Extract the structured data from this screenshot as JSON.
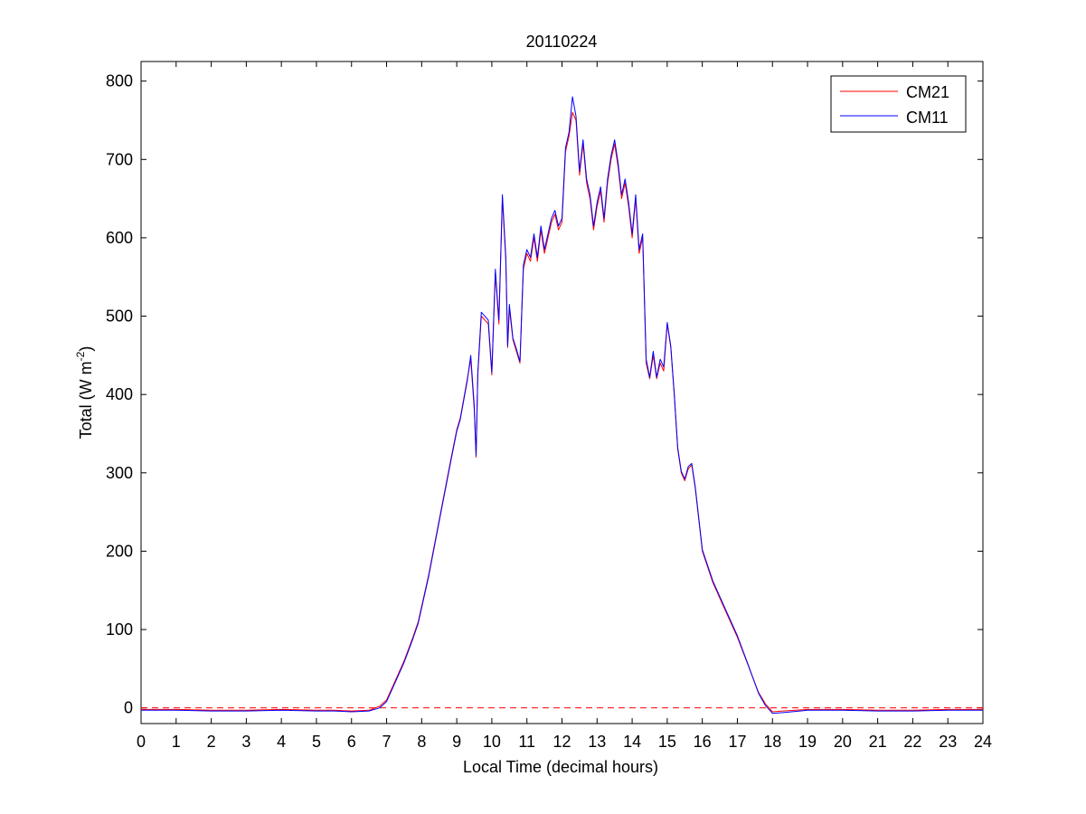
{
  "chart_data": {
    "type": "line",
    "title": "20110224",
    "xlabel": "Local Time (decimal hours)",
    "ylabel": {
      "base": "Total (W m",
      "exponent": "-2",
      "close": ")"
    },
    "xlim": [
      0,
      24
    ],
    "ylim": [
      -20,
      825
    ],
    "xticks": [
      0,
      1,
      2,
      3,
      4,
      5,
      6,
      7,
      8,
      9,
      10,
      11,
      12,
      13,
      14,
      15,
      16,
      17,
      18,
      19,
      20,
      21,
      22,
      23,
      24
    ],
    "yticks": [
      0,
      100,
      200,
      300,
      400,
      500,
      600,
      700,
      800
    ],
    "grid": false,
    "legend_position": "top-right",
    "reference_line": {
      "y": 0,
      "style": "dashed",
      "color": "#ff0000"
    },
    "series": [
      {
        "name": "CM21",
        "color": "#ff0000",
        "x": [
          0,
          1,
          2,
          3,
          4,
          5,
          5.5,
          6,
          6.5,
          6.8,
          7,
          7.2,
          7.5,
          7.75,
          7.9,
          8.2,
          8.5,
          8.8,
          9,
          9.1,
          9.3,
          9.4,
          9.5,
          9.55,
          9.6,
          9.7,
          9.9,
          10,
          10.1,
          10.2,
          10.3,
          10.4,
          10.45,
          10.5,
          10.6,
          10.7,
          10.8,
          10.9,
          11,
          11.1,
          11.2,
          11.3,
          11.4,
          11.5,
          11.6,
          11.7,
          11.8,
          11.9,
          12,
          12.1,
          12.2,
          12.3,
          12.4,
          12.5,
          12.6,
          12.7,
          12.8,
          12.9,
          13,
          13.1,
          13.2,
          13.3,
          13.4,
          13.5,
          13.6,
          13.7,
          13.8,
          13.9,
          14,
          14.1,
          14.2,
          14.3,
          14.4,
          14.5,
          14.6,
          14.7,
          14.8,
          14.9,
          15,
          15.1,
          15.2,
          15.3,
          15.4,
          15.5,
          15.6,
          15.7,
          15.8,
          16,
          16.3,
          16.6,
          17,
          17.3,
          17.6,
          17.8,
          18,
          18.3,
          19,
          20,
          21,
          22,
          23,
          24
        ],
        "y": [
          -2,
          -2,
          -3,
          -3,
          -2,
          -3,
          -3,
          -4,
          -3,
          2,
          10,
          30,
          60,
          90,
          110,
          170,
          240,
          310,
          355,
          370,
          420,
          445,
          380,
          320,
          425,
          500,
          490,
          425,
          555,
          490,
          650,
          570,
          460,
          510,
          470,
          455,
          440,
          560,
          580,
          570,
          600,
          570,
          610,
          580,
          600,
          620,
          630,
          610,
          620,
          710,
          730,
          760,
          750,
          680,
          720,
          670,
          650,
          610,
          640,
          660,
          620,
          670,
          700,
          720,
          690,
          650,
          670,
          640,
          600,
          650,
          580,
          600,
          440,
          420,
          450,
          420,
          440,
          430,
          490,
          460,
          400,
          330,
          300,
          290,
          305,
          310,
          280,
          200,
          160,
          130,
          90,
          55,
          20,
          5,
          -5,
          -4,
          -2,
          -2,
          -3,
          -3,
          -2,
          -2
        ]
      },
      {
        "name": "CM11",
        "color": "#0000ff",
        "x": [
          0,
          1,
          2,
          3,
          4,
          5,
          5.5,
          6,
          6.5,
          6.8,
          7,
          7.2,
          7.5,
          7.75,
          7.9,
          8.2,
          8.5,
          8.8,
          9,
          9.1,
          9.3,
          9.4,
          9.5,
          9.55,
          9.6,
          9.7,
          9.9,
          10,
          10.1,
          10.2,
          10.3,
          10.4,
          10.45,
          10.5,
          10.6,
          10.7,
          10.8,
          10.9,
          11,
          11.1,
          11.2,
          11.3,
          11.4,
          11.5,
          11.6,
          11.7,
          11.8,
          11.9,
          12,
          12.1,
          12.2,
          12.3,
          12.4,
          12.5,
          12.6,
          12.7,
          12.8,
          12.9,
          13,
          13.1,
          13.2,
          13.3,
          13.4,
          13.5,
          13.6,
          13.7,
          13.8,
          13.9,
          14,
          14.1,
          14.2,
          14.3,
          14.4,
          14.5,
          14.6,
          14.7,
          14.8,
          14.9,
          15,
          15.1,
          15.2,
          15.3,
          15.4,
          15.5,
          15.6,
          15.7,
          15.8,
          16,
          16.3,
          16.6,
          17,
          17.3,
          17.6,
          17.8,
          18,
          18.3,
          19,
          20,
          21,
          22,
          23,
          24
        ],
        "y": [
          -3,
          -3,
          -4,
          -4,
          -3,
          -4,
          -4,
          -5,
          -4,
          0,
          8,
          28,
          58,
          88,
          108,
          168,
          238,
          308,
          353,
          368,
          418,
          450,
          385,
          322,
          428,
          505,
          495,
          428,
          560,
          495,
          655,
          575,
          462,
          515,
          472,
          458,
          442,
          565,
          585,
          575,
          605,
          575,
          615,
          585,
          605,
          625,
          635,
          615,
          625,
          715,
          735,
          780,
          755,
          685,
          725,
          675,
          655,
          615,
          645,
          665,
          625,
          675,
          705,
          725,
          695,
          655,
          675,
          645,
          605,
          655,
          585,
          605,
          445,
          422,
          455,
          422,
          445,
          435,
          492,
          462,
          402,
          332,
          302,
          292,
          308,
          312,
          282,
          202,
          162,
          132,
          92,
          56,
          19,
          3,
          -7,
          -6,
          -3,
          -3,
          -4,
          -4,
          -3,
          -3
        ]
      }
    ]
  }
}
